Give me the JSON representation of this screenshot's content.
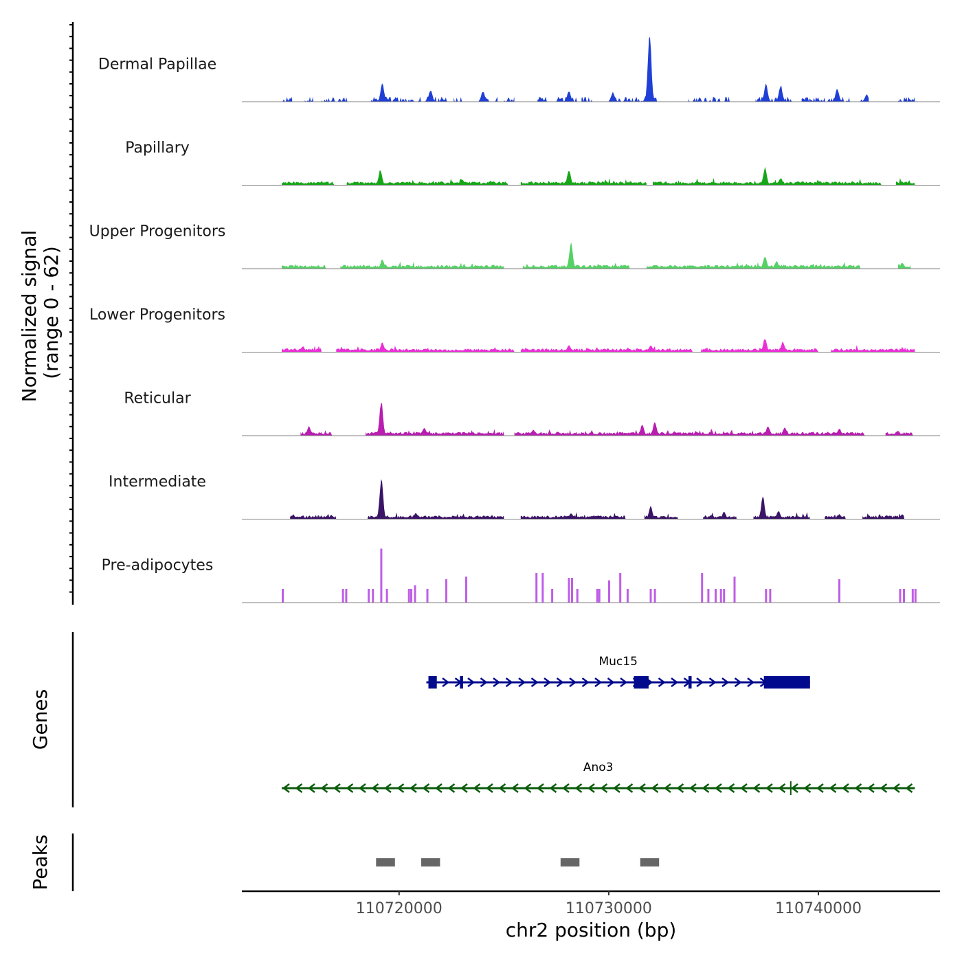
{
  "chart_data": {
    "type": "area",
    "chromosome": "chr2",
    "xlim": [
      110712500,
      110745800
    ],
    "xlabel": "chr2 position (bp)",
    "ylabel_line1": "Normalized signal",
    "ylabel_line2": "(range 0 - 62)",
    "ylim": [
      0,
      62
    ],
    "x_ticks": [
      {
        "value": 110720000,
        "label": "110720000"
      },
      {
        "value": 110730000,
        "label": "110730000"
      },
      {
        "value": 110740000,
        "label": "110740000"
      }
    ],
    "tracks": [
      {
        "name": "Dermal Papillae",
        "color": "#1f3fd6",
        "style": "sparse",
        "seed": 11,
        "peaks": [
          [
            110719200,
            16
          ],
          [
            110721500,
            10
          ],
          [
            110724000,
            9
          ],
          [
            110728100,
            9
          ],
          [
            110730200,
            8
          ],
          [
            110731950,
            62
          ],
          [
            110737500,
            15
          ],
          [
            110738200,
            14
          ],
          [
            110740900,
            11
          ],
          [
            110742300,
            6
          ]
        ],
        "covered": [
          [
            110714400,
            110714900
          ],
          [
            110715500,
            110715900
          ],
          [
            110716300,
            110717600
          ],
          [
            110718600,
            110720700
          ],
          [
            110720900,
            110722300
          ],
          [
            110722600,
            110723000
          ],
          [
            110723800,
            110724700
          ],
          [
            110725000,
            110725500
          ],
          [
            110726600,
            110727100
          ],
          [
            110727500,
            110728500
          ],
          [
            110728700,
            110729200
          ],
          [
            110730000,
            110732300
          ],
          [
            110733800,
            110735800
          ],
          [
            110737000,
            110738800
          ],
          [
            110739200,
            110741500
          ],
          [
            110742000,
            110742400
          ],
          [
            110743800,
            110744600
          ]
        ]
      },
      {
        "name": "Papillary",
        "color": "#17a617",
        "style": "dense",
        "seed": 23,
        "peaks": [
          [
            110719100,
            13
          ],
          [
            110723000,
            5
          ],
          [
            110728100,
            13
          ],
          [
            110732000,
            6
          ],
          [
            110737450,
            15
          ],
          [
            110738200,
            6
          ]
        ],
        "covered": [
          [
            110714400,
            110716900
          ],
          [
            110717500,
            110725200
          ],
          [
            110725800,
            110731800
          ],
          [
            110732100,
            110743000
          ],
          [
            110743700,
            110744600
          ]
        ]
      },
      {
        "name": "Upper Progenitors",
        "color": "#55d166",
        "style": "dense",
        "seed": 37,
        "peaks": [
          [
            110719200,
            8
          ],
          [
            110728200,
            22
          ],
          [
            110737450,
            11
          ],
          [
            110738000,
            6
          ],
          [
            110744000,
            5
          ]
        ],
        "covered": [
          [
            110714400,
            110716500
          ],
          [
            110717200,
            110725000
          ],
          [
            110725900,
            110731000
          ],
          [
            110731800,
            110742000
          ],
          [
            110743800,
            110744400
          ]
        ]
      },
      {
        "name": "Lower Progenitors",
        "color": "#ea2fd6",
        "style": "dense",
        "seed": 51,
        "peaks": [
          [
            110715400,
            5
          ],
          [
            110719200,
            8
          ],
          [
            110728100,
            6
          ],
          [
            110732000,
            6
          ],
          [
            110737450,
            12
          ],
          [
            110738300,
            9
          ]
        ],
        "covered": [
          [
            110714400,
            110716300
          ],
          [
            110717000,
            110725500
          ],
          [
            110725800,
            110734000
          ],
          [
            110734400,
            110740000
          ],
          [
            110740600,
            110744600
          ]
        ]
      },
      {
        "name": "Reticular",
        "color": "#b81eb0",
        "style": "dense",
        "seed": 67,
        "peaks": [
          [
            110715700,
            8
          ],
          [
            110719150,
            30
          ],
          [
            110721200,
            7
          ],
          [
            110726400,
            5
          ],
          [
            110731600,
            9
          ],
          [
            110732200,
            12
          ],
          [
            110737600,
            8
          ],
          [
            110738400,
            7
          ],
          [
            110741000,
            6
          ],
          [
            110743800,
            4
          ]
        ],
        "covered": [
          [
            110715300,
            110716800
          ],
          [
            110718400,
            110725000
          ],
          [
            110725500,
            110742200
          ],
          [
            110743200,
            110744500
          ]
        ]
      },
      {
        "name": "Intermediate",
        "color": "#3a1466",
        "style": "dense",
        "seed": 79,
        "peaks": [
          [
            110719150,
            36
          ],
          [
            110720800,
            5
          ],
          [
            110728200,
            5
          ],
          [
            110732000,
            11
          ],
          [
            110735500,
            6
          ],
          [
            110737350,
            19
          ],
          [
            110738100,
            7
          ],
          [
            110741000,
            4
          ],
          [
            110744000,
            4
          ]
        ],
        "covered": [
          [
            110714800,
            110717000
          ],
          [
            110718500,
            110725000
          ],
          [
            110725800,
            110730800
          ],
          [
            110731700,
            110733300
          ],
          [
            110734500,
            110736100
          ],
          [
            110736900,
            110739600
          ],
          [
            110740300,
            110741300
          ],
          [
            110742100,
            110744100
          ]
        ]
      },
      {
        "name": "Pre-adipocytes",
        "color": "#bf5ee6",
        "style": "spikes",
        "seed": 91,
        "spikes": [
          [
            110714450,
            11
          ],
          [
            110717320,
            11
          ],
          [
            110717480,
            11
          ],
          [
            110718550,
            11
          ],
          [
            110718750,
            11
          ],
          [
            110719150,
            44
          ],
          [
            110719420,
            11
          ],
          [
            110720470,
            11
          ],
          [
            110720580,
            11
          ],
          [
            110720760,
            14
          ],
          [
            110721350,
            11
          ],
          [
            110722250,
            19
          ],
          [
            110723200,
            21
          ],
          [
            110726550,
            24
          ],
          [
            110726850,
            24
          ],
          [
            110727300,
            11
          ],
          [
            110728100,
            20
          ],
          [
            110728250,
            20
          ],
          [
            110728500,
            11
          ],
          [
            110729450,
            11
          ],
          [
            110729550,
            11
          ],
          [
            110730020,
            18
          ],
          [
            110730550,
            24
          ],
          [
            110730900,
            11
          ],
          [
            110732000,
            11
          ],
          [
            110732200,
            11
          ],
          [
            110734450,
            24
          ],
          [
            110734750,
            11
          ],
          [
            110735100,
            11
          ],
          [
            110735350,
            11
          ],
          [
            110735500,
            11
          ],
          [
            110736000,
            21
          ],
          [
            110737500,
            11
          ],
          [
            110737700,
            11
          ],
          [
            110741000,
            19
          ],
          [
            110743900,
            11
          ],
          [
            110744080,
            11
          ],
          [
            110744500,
            11
          ],
          [
            110744630,
            11
          ]
        ]
      }
    ],
    "genes_axis_label": "Genes",
    "peaks_axis_label": "Peaks",
    "genes": [
      {
        "name": "Muc15",
        "strand": "+",
        "color": "#000a8c",
        "start": 110721300,
        "end": 110739600,
        "exons": [
          [
            110721400,
            110721800
          ],
          [
            110722900,
            110723050
          ],
          [
            110731200,
            110731900
          ],
          [
            110733800,
            110733950
          ],
          [
            110737400,
            110739600
          ]
        ]
      },
      {
        "name": "Ano3",
        "strand": "-",
        "color": "#0d5c0d",
        "start": 110714400,
        "end": 110744600,
        "exons": [
          [
            110738650,
            110738700
          ]
        ]
      }
    ],
    "peaks": [
      [
        110718900,
        110719800
      ],
      [
        110721050,
        110721950
      ],
      [
        110727700,
        110728600
      ],
      [
        110731500,
        110732400
      ]
    ]
  }
}
